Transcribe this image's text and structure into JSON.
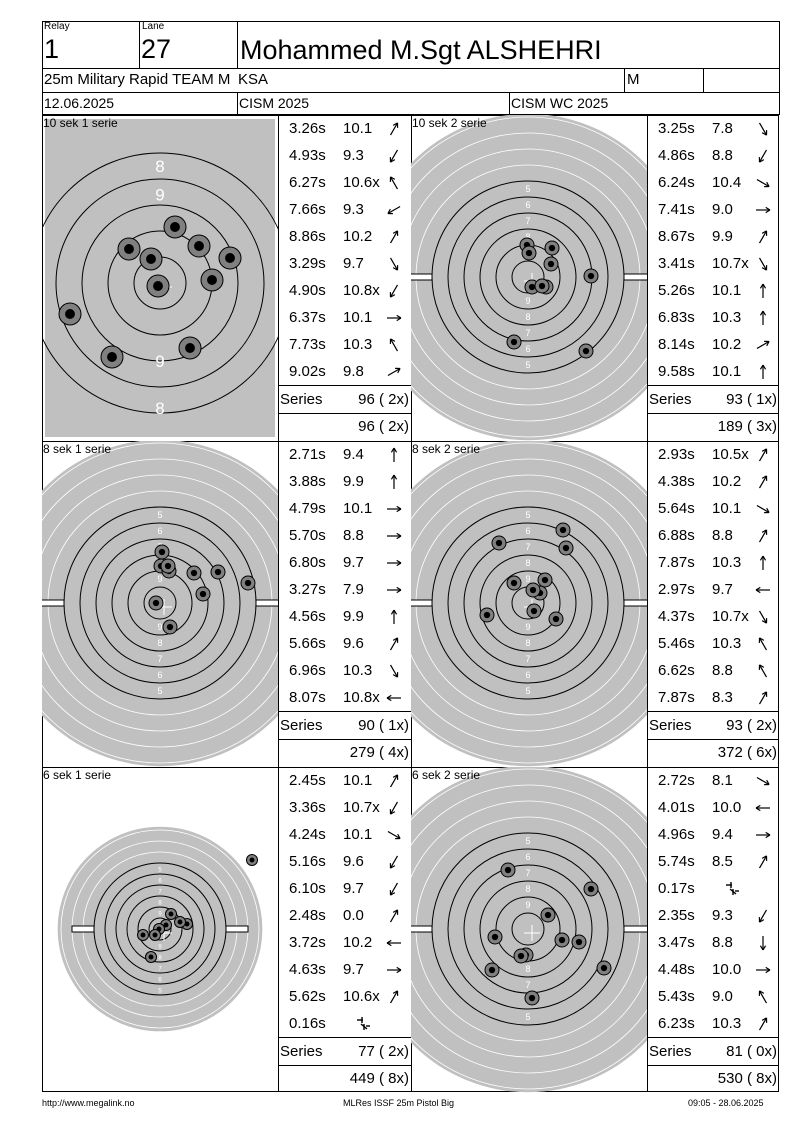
{
  "header": {
    "relay_label": "Relay",
    "relay": "1",
    "lane_label": "Lane",
    "lane": "27",
    "name": "Mohammed M.Sgt ALSHEHRI",
    "event": "25m Military Rapid TEAM M",
    "nation": "KSA",
    "gender": "M",
    "date": "12.06.2025",
    "competition": "CISM 2025",
    "championship": "CISM WC 2025"
  },
  "series_label": "Series",
  "panels": [
    {
      "title": "10 sek 1 serie",
      "series_total": "96 ( 2x)",
      "running_total": "96 ( 2x)",
      "shots": [
        {
          "time": "3.26s",
          "value": "10.1",
          "dir": "up-right"
        },
        {
          "time": "4.93s",
          "value": "9.3",
          "dir": "down-left"
        },
        {
          "time": "6.27s",
          "value": "10.6x",
          "dir": "up-left"
        },
        {
          "time": "7.66s",
          "value": "9.3",
          "dir": "left-down"
        },
        {
          "time": "8.86s",
          "value": "10.2",
          "dir": "up-right"
        },
        {
          "time": "3.29s",
          "value": "9.7",
          "dir": "down-right"
        },
        {
          "time": "4.90s",
          "value": "10.8x",
          "dir": "down-left"
        },
        {
          "time": "6.37s",
          "value": "10.1",
          "dir": "right"
        },
        {
          "time": "7.73s",
          "value": "10.3",
          "dir": "up-left"
        },
        {
          "time": "9.02s",
          "value": "9.8",
          "dir": "right-up"
        }
      ]
    },
    {
      "title": "10 sek 2 serie",
      "series_total": "93 ( 1x)",
      "running_total": "189 ( 3x)",
      "shots": [
        {
          "time": "3.25s",
          "value": "7.8",
          "dir": "down-right"
        },
        {
          "time": "4.86s",
          "value": "8.8",
          "dir": "down-left"
        },
        {
          "time": "6.24s",
          "value": "10.4",
          "dir": "right-down"
        },
        {
          "time": "7.41s",
          "value": "9.0",
          "dir": "right"
        },
        {
          "time": "8.67s",
          "value": "9.9",
          "dir": "up-right"
        },
        {
          "time": "3.41s",
          "value": "10.7x",
          "dir": "down-right"
        },
        {
          "time": "5.26s",
          "value": "10.1",
          "dir": "up"
        },
        {
          "time": "6.83s",
          "value": "10.3",
          "dir": "up"
        },
        {
          "time": "8.14s",
          "value": "10.2",
          "dir": "right-up"
        },
        {
          "time": "9.58s",
          "value": "10.1",
          "dir": "up"
        }
      ]
    },
    {
      "title": "8 sek 1 serie",
      "series_total": "90 ( 1x)",
      "running_total": "279 ( 4x)",
      "shots": [
        {
          "time": "2.71s",
          "value": "9.4",
          "dir": "up"
        },
        {
          "time": "3.88s",
          "value": "9.9",
          "dir": "up"
        },
        {
          "time": "4.79s",
          "value": "10.1",
          "dir": "right"
        },
        {
          "time": "5.70s",
          "value": "8.8",
          "dir": "right"
        },
        {
          "time": "6.80s",
          "value": "9.7",
          "dir": "right"
        },
        {
          "time": "3.27s",
          "value": "7.9",
          "dir": "right"
        },
        {
          "time": "4.56s",
          "value": "9.9",
          "dir": "up"
        },
        {
          "time": "5.66s",
          "value": "9.6",
          "dir": "up-right"
        },
        {
          "time": "6.96s",
          "value": "10.3",
          "dir": "down-right"
        },
        {
          "time": "8.07s",
          "value": "10.8x",
          "dir": "left"
        }
      ]
    },
    {
      "title": "8 sek 2 serie",
      "series_total": "93 ( 2x)",
      "running_total": "372 ( 6x)",
      "shots": [
        {
          "time": "2.93s",
          "value": "10.5x",
          "dir": "up-right"
        },
        {
          "time": "4.38s",
          "value": "10.2",
          "dir": "up-right"
        },
        {
          "time": "5.64s",
          "value": "10.1",
          "dir": "right-down"
        },
        {
          "time": "6.88s",
          "value": "8.8",
          "dir": "up-right"
        },
        {
          "time": "7.87s",
          "value": "10.3",
          "dir": "up"
        },
        {
          "time": "2.97s",
          "value": "9.7",
          "dir": "left"
        },
        {
          "time": "4.37s",
          "value": "10.7x",
          "dir": "down-right"
        },
        {
          "time": "5.46s",
          "value": "10.3",
          "dir": "up-left"
        },
        {
          "time": "6.62s",
          "value": "8.8",
          "dir": "up-left"
        },
        {
          "time": "7.87s",
          "value": "8.3",
          "dir": "up-right"
        }
      ]
    },
    {
      "title": "6 sek 1 serie",
      "series_total": "77 ( 2x)",
      "running_total": "449 ( 8x)",
      "shots": [
        {
          "time": "2.45s",
          "value": "10.1",
          "dir": "up-right"
        },
        {
          "time": "3.36s",
          "value": "10.7x",
          "dir": "down-left"
        },
        {
          "time": "4.24s",
          "value": "10.1",
          "dir": "right-down"
        },
        {
          "time": "5.16s",
          "value": "9.6",
          "dir": "down-left"
        },
        {
          "time": "6.10s",
          "value": "9.7",
          "dir": "down-left"
        },
        {
          "time": "2.48s",
          "value": "0.0",
          "dir": "up-right"
        },
        {
          "time": "3.72s",
          "value": "10.2",
          "dir": "left"
        },
        {
          "time": "4.63s",
          "value": "9.7",
          "dir": "right"
        },
        {
          "time": "5.62s",
          "value": "10.6x",
          "dir": "up-right"
        },
        {
          "time": "0.16s",
          "value": "",
          "dir": "miss"
        }
      ]
    },
    {
      "title": "6 sek 2 serie",
      "series_total": "81 ( 0x)",
      "running_total": "530 ( 8x)",
      "shots": [
        {
          "time": "2.72s",
          "value": "8.1",
          "dir": "right-down"
        },
        {
          "time": "4.01s",
          "value": "10.0",
          "dir": "left"
        },
        {
          "time": "4.96s",
          "value": "9.4",
          "dir": "right"
        },
        {
          "time": "5.74s",
          "value": "8.5",
          "dir": "up-right"
        },
        {
          "time": "0.17s",
          "value": "",
          "dir": "miss"
        },
        {
          "time": "2.35s",
          "value": "9.3",
          "dir": "down-left"
        },
        {
          "time": "3.47s",
          "value": "8.8",
          "dir": "down"
        },
        {
          "time": "4.48s",
          "value": "10.0",
          "dir": "right"
        },
        {
          "time": "5.43s",
          "value": "9.0",
          "dir": "up-left"
        },
        {
          "time": "6.23s",
          "value": "10.3",
          "dir": "up-right"
        }
      ]
    }
  ],
  "footer": {
    "left": "http://www.megalink.no",
    "center": "MLRes ISSF 25m Pistol Big",
    "right": "09:05 - 28.06.2025"
  }
}
